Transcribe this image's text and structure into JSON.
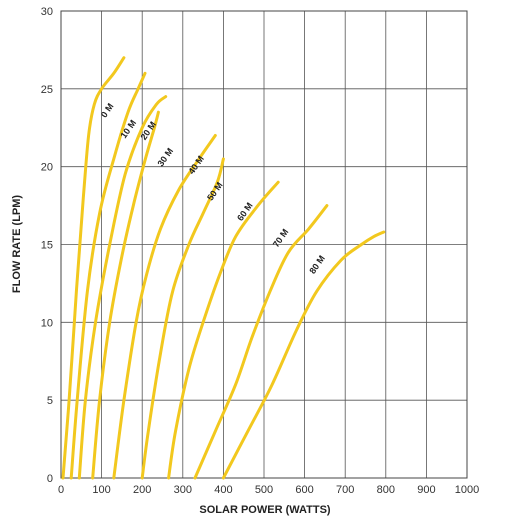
{
  "chart_data": {
    "type": "line",
    "title": "",
    "xlabel": "SOLAR POWER (WATTS)",
    "ylabel": "FLOW RATE (LPM)",
    "xlim": [
      0,
      1000
    ],
    "ylim": [
      0,
      30
    ],
    "xticks": [
      0,
      100,
      200,
      300,
      400,
      500,
      600,
      700,
      800,
      900,
      1000
    ],
    "yticks": [
      0,
      5,
      10,
      15,
      20,
      25,
      30
    ],
    "grid": true,
    "line_color": "#F2C81E",
    "series": [
      {
        "name": "0 M",
        "points": [
          [
            5,
            0
          ],
          [
            20,
            5
          ],
          [
            38,
            12
          ],
          [
            55,
            18
          ],
          [
            68,
            22
          ],
          [
            82,
            24
          ],
          [
            100,
            25
          ],
          [
            130,
            26
          ],
          [
            155,
            27
          ]
        ]
      },
      {
        "name": "10 M",
        "points": [
          [
            25,
            0
          ],
          [
            40,
            5
          ],
          [
            65,
            12
          ],
          [
            95,
            17
          ],
          [
            130,
            20.5
          ],
          [
            165,
            23.5
          ],
          [
            190,
            25
          ],
          [
            207,
            26
          ]
        ]
      },
      {
        "name": "20 M",
        "points": [
          [
            45,
            0
          ],
          [
            60,
            5
          ],
          [
            85,
            10
          ],
          [
            120,
            15
          ],
          [
            158,
            19.5
          ],
          [
            200,
            22.5
          ],
          [
            235,
            24
          ],
          [
            258,
            24.5
          ]
        ]
      },
      {
        "name": "30 M",
        "points": [
          [
            78,
            0
          ],
          [
            95,
            5
          ],
          [
            120,
            10
          ],
          [
            148,
            14
          ],
          [
            178,
            17.5
          ],
          [
            208,
            20.5
          ],
          [
            230,
            22.5
          ],
          [
            240,
            23.5
          ]
        ]
      },
      {
        "name": "40 M",
        "points": [
          [
            130,
            0
          ],
          [
            155,
            5
          ],
          [
            185,
            10
          ],
          [
            210,
            13
          ],
          [
            245,
            16
          ],
          [
            290,
            18.5
          ],
          [
            340,
            20.5
          ],
          [
            380,
            22
          ]
        ]
      },
      {
        "name": "50 M",
        "points": [
          [
            200,
            0
          ],
          [
            215,
            3
          ],
          [
            245,
            8
          ],
          [
            275,
            12
          ],
          [
            315,
            15
          ],
          [
            350,
            17
          ],
          [
            385,
            19
          ],
          [
            400,
            20.5
          ]
        ]
      },
      {
        "name": "60 M",
        "points": [
          [
            265,
            0
          ],
          [
            282,
            3
          ],
          [
            315,
            7
          ],
          [
            350,
            10
          ],
          [
            390,
            13
          ],
          [
            430,
            15.5
          ],
          [
            485,
            17.5
          ],
          [
            535,
            19
          ]
        ]
      },
      {
        "name": "70 M",
        "points": [
          [
            330,
            0
          ],
          [
            380,
            3
          ],
          [
            430,
            6
          ],
          [
            470,
            9
          ],
          [
            515,
            12
          ],
          [
            560,
            14.5
          ],
          [
            610,
            16
          ],
          [
            655,
            17.5
          ]
        ]
      },
      {
        "name": "80 M",
        "points": [
          [
            400,
            0
          ],
          [
            460,
            3
          ],
          [
            520,
            6
          ],
          [
            580,
            9.5
          ],
          [
            630,
            12
          ],
          [
            690,
            14
          ],
          [
            740,
            15
          ],
          [
            770,
            15.5
          ],
          [
            795,
            15.8
          ]
        ]
      }
    ],
    "curve_labels": [
      {
        "text": "0 M",
        "x": 120,
        "y": 23.5
      },
      {
        "text": "10 M",
        "x": 172,
        "y": 22.3
      },
      {
        "text": "20 M",
        "x": 221,
        "y": 22.2
      },
      {
        "text": "30 M",
        "x": 263,
        "y": 20.5
      },
      {
        "text": "40 M",
        "x": 339,
        "y": 20.0
      },
      {
        "text": "50 M",
        "x": 385,
        "y": 18.3
      },
      {
        "text": "60 M",
        "x": 459,
        "y": 17.0
      },
      {
        "text": "70 M",
        "x": 547,
        "y": 15.3
      },
      {
        "text": "80 M",
        "x": 637,
        "y": 13.6
      }
    ]
  }
}
